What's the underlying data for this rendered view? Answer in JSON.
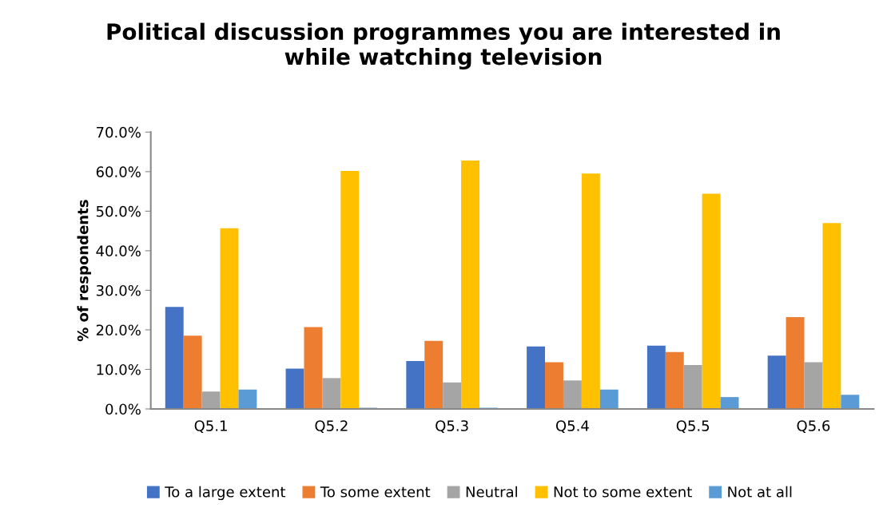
{
  "chart_data": {
    "type": "bar",
    "title": "Political discussion programmes you are interested in\nwhile watching television",
    "ylabel": "% of respondents",
    "categories": [
      "Q5.1",
      "Q5.2",
      "Q5.3",
      "Q5.4",
      "Q5.5",
      "Q5.6"
    ],
    "series": [
      {
        "name": "To a large extent",
        "color": "#4472c4",
        "values": [
          25.8,
          10.2,
          12.1,
          15.8,
          16.0,
          13.5
        ]
      },
      {
        "name": "To some extent",
        "color": "#ed7d31",
        "values": [
          18.5,
          20.7,
          17.2,
          11.8,
          14.4,
          23.2
        ]
      },
      {
        "name": "Neutral",
        "color": "#a5a5a5",
        "values": [
          4.4,
          7.8,
          6.7,
          7.2,
          11.1,
          11.8
        ]
      },
      {
        "name": "Not to some extent",
        "color": "#ffc000",
        "values": [
          45.7,
          60.2,
          62.8,
          59.5,
          54.4,
          47.0
        ]
      },
      {
        "name": "Not at all",
        "color": "#5b9bd5",
        "values": [
          4.9,
          0.3,
          0.3,
          4.9,
          3.0,
          3.6
        ]
      }
    ],
    "ylim": [
      0,
      70
    ],
    "yticks": [
      {
        "value": 0,
        "label": "0.0%"
      },
      {
        "value": 10,
        "label": "10.0%"
      },
      {
        "value": 20,
        "label": "20.0%"
      },
      {
        "value": 30,
        "label": "30.0%"
      },
      {
        "value": 40,
        "label": "40.0%"
      },
      {
        "value": 50,
        "label": "50.0%"
      },
      {
        "value": 60,
        "label": "60.0%"
      },
      {
        "value": 70,
        "label": "70.0%"
      }
    ],
    "legend": "bottom"
  }
}
